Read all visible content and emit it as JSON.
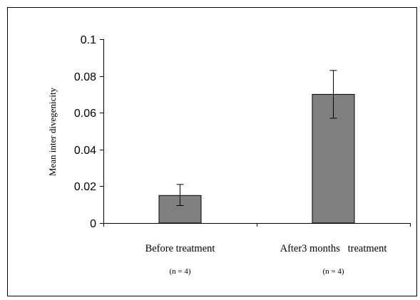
{
  "chart_data": {
    "type": "bar",
    "categories": [
      "Before treatment",
      "After3 months   treatment"
    ],
    "category_notes": [
      "(n = 4)",
      "(n = 4)"
    ],
    "values": [
      0.015,
      0.07
    ],
    "error_low": [
      0.0095,
      0.057
    ],
    "error_high": [
      0.021,
      0.083
    ],
    "title": "",
    "xlabel": "",
    "ylabel": "Mean inter divegenicity",
    "ylim": [
      0,
      0.1
    ],
    "yticks": [
      0,
      0.02,
      0.04,
      0.06,
      0.08,
      0.1
    ],
    "ytick_labels": [
      "0",
      "0.02",
      "0.04",
      "0.06",
      "0.08",
      "0.1"
    ],
    "grid": false,
    "legend": "none",
    "colors": {
      "bar_fill": "#808080",
      "bar_stroke": "#000000",
      "axis": "#000000",
      "frame": "#000000",
      "background": "#ffffff"
    }
  }
}
